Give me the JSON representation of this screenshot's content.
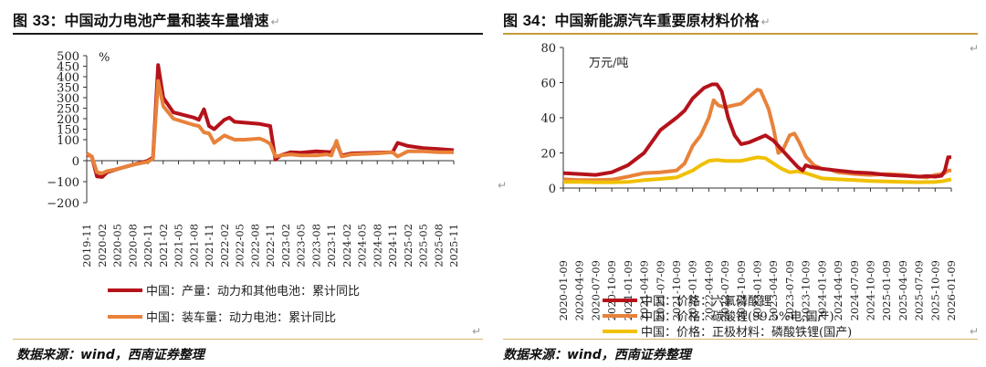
{
  "left": {
    "title_prefix": "图 ",
    "title_num": "33",
    "title_text": "：中国动力电池产量和装车量增速",
    "source": "数据来源：wind，西南证券整理",
    "chart_data": {
      "type": "line",
      "unit_label": "%",
      "ylim": [
        -200,
        500
      ],
      "yticks": [
        -200,
        -100,
        0,
        100,
        150,
        200,
        250,
        300,
        350,
        400,
        450,
        500
      ],
      "xticks": [
        "2019-11",
        "2020-02",
        "2020-05",
        "2020-08",
        "2020-11",
        "2021-02",
        "2021-05",
        "2021-08",
        "2021-11",
        "2022-02",
        "2022-05",
        "2022-08",
        "2022-11",
        "2023-02",
        "2023-05",
        "2023-08",
        "2023-11",
        "2024-02",
        "2024-05",
        "2024-08",
        "2024-11",
        "2025-02",
        "2025-05",
        "2025-08",
        "2025-11"
      ],
      "series": [
        {
          "name": "中国：产量：动力和其他电池：累计同比",
          "color": "#b5121b",
          "values": [
            [
              0,
              30
            ],
            [
              1,
              20
            ],
            [
              2,
              -75
            ],
            [
              3,
              -78
            ],
            [
              4,
              -55
            ],
            [
              6,
              -40
            ],
            [
              9,
              -20
            ],
            [
              12,
              0
            ],
            [
              13,
              15
            ],
            [
              14,
              455
            ],
            [
              15,
              300
            ],
            [
              17,
              230
            ],
            [
              21,
              205
            ],
            [
              22,
              195
            ],
            [
              23,
              245
            ],
            [
              24,
              165
            ],
            [
              25,
              150
            ],
            [
              27,
              195
            ],
            [
              28,
              205
            ],
            [
              29,
              185
            ],
            [
              34,
              175
            ],
            [
              35,
              170
            ],
            [
              36,
              165
            ],
            [
              37,
              5
            ],
            [
              38,
              25
            ],
            [
              40,
              40
            ],
            [
              42,
              38
            ],
            [
              45,
              45
            ],
            [
              48,
              40
            ],
            [
              49,
              85
            ],
            [
              50,
              25
            ],
            [
              52,
              35
            ],
            [
              57,
              38
            ],
            [
              60,
              40
            ],
            [
              61,
              85
            ],
            [
              63,
              70
            ],
            [
              66,
              60
            ],
            [
              69,
              55
            ],
            [
              72,
              50
            ]
          ]
        },
        {
          "name": "中国：装车量：动力电池：累计同比",
          "color": "#e8823a",
          "values": [
            [
              0,
              35
            ],
            [
              1,
              20
            ],
            [
              2,
              -55
            ],
            [
              3,
              -60
            ],
            [
              4,
              -50
            ],
            [
              6,
              -40
            ],
            [
              9,
              -20
            ],
            [
              12,
              -5
            ],
            [
              13,
              10
            ],
            [
              14,
              380
            ],
            [
              15,
              260
            ],
            [
              17,
              200
            ],
            [
              21,
              170
            ],
            [
              22,
              165
            ],
            [
              23,
              135
            ],
            [
              24,
              130
            ],
            [
              25,
              85
            ],
            [
              27,
              120
            ],
            [
              28,
              110
            ],
            [
              29,
              100
            ],
            [
              31,
              100
            ],
            [
              34,
              105
            ],
            [
              35,
              95
            ],
            [
              36,
              80
            ],
            [
              37,
              20
            ],
            [
              38,
              25
            ],
            [
              40,
              30
            ],
            [
              42,
              25
            ],
            [
              45,
              25
            ],
            [
              47,
              30
            ],
            [
              48,
              25
            ],
            [
              49,
              95
            ],
            [
              50,
              20
            ],
            [
              52,
              30
            ],
            [
              57,
              35
            ],
            [
              60,
              40
            ],
            [
              61,
              20
            ],
            [
              63,
              45
            ],
            [
              66,
              45
            ],
            [
              69,
              40
            ],
            [
              72,
              40
            ]
          ]
        }
      ]
    }
  },
  "right": {
    "title_prefix": "图 ",
    "title_num": "34",
    "title_text": "：中国新能源汽车重要原材料价格",
    "source": "数据来源：wind，西南证券整理",
    "chart_data": {
      "type": "line",
      "unit_label": "万元/吨",
      "ylim": [
        0,
        80
      ],
      "yticks": [
        0,
        20,
        40,
        60,
        80
      ],
      "xticks": [
        "2020-01-09",
        "2020-04-09",
        "2020-07-09",
        "2020-10-09",
        "2021-01-09",
        "2021-04-09",
        "2021-07-09",
        "2021-10-09",
        "2022-01-09",
        "2022-04-09",
        "2022-07-09",
        "2022-10-09",
        "2023-01-09",
        "2023-04-09",
        "2023-07-09",
        "2023-10-09",
        "2024-01-09",
        "2024-04-09",
        "2024-07-09",
        "2024-10-09",
        "2025-01-09",
        "2025-04-09",
        "2025-07-09",
        "2025-10-09",
        "2026-01-09"
      ],
      "series": [
        {
          "name": "中国：价格：六氟磷酸锂",
          "color": "#b5121b",
          "values": [
            [
              0,
              8.5
            ],
            [
              1,
              8
            ],
            [
              2,
              7.5
            ],
            [
              3,
              9
            ],
            [
              4,
              13
            ],
            [
              5,
              20
            ],
            [
              6,
              33
            ],
            [
              7,
              40
            ],
            [
              7.5,
              44
            ],
            [
              8,
              51
            ],
            [
              8.7,
              57
            ],
            [
              9.2,
              59
            ],
            [
              9.5,
              59
            ],
            [
              9.8,
              55
            ],
            [
              10.2,
              40
            ],
            [
              10.6,
              30
            ],
            [
              11,
              25
            ],
            [
              11.5,
              26
            ],
            [
              12,
              28
            ],
            [
              12.5,
              30
            ],
            [
              13,
              27
            ],
            [
              13.5,
              22
            ],
            [
              14,
              17
            ],
            [
              14.5,
              12
            ],
            [
              14.8,
              10
            ],
            [
              15,
              13
            ],
            [
              15.3,
              12
            ],
            [
              16,
              11
            ],
            [
              17,
              10
            ],
            [
              18,
              9
            ],
            [
              19,
              8.5
            ],
            [
              20,
              7.5
            ],
            [
              21,
              7
            ],
            [
              22,
              6.5
            ],
            [
              22.5,
              6.8
            ],
            [
              23,
              6.5
            ],
            [
              23.4,
              7
            ],
            [
              23.6,
              10
            ],
            [
              23.8,
              17.5
            ],
            [
              24,
              17.5
            ]
          ]
        },
        {
          "name": "中国：价格：碳酸锂(99.5%电,国产)",
          "color": "#e8823a",
          "values": [
            [
              0,
              5
            ],
            [
              1,
              4.5
            ],
            [
              2,
              4.5
            ],
            [
              3,
              4.8
            ],
            [
              4,
              6.5
            ],
            [
              5,
              8.5
            ],
            [
              6,
              9
            ],
            [
              7,
              10
            ],
            [
              7.5,
              14
            ],
            [
              8,
              24
            ],
            [
              8.5,
              30
            ],
            [
              9,
              40
            ],
            [
              9.3,
              50
            ],
            [
              9.6,
              47
            ],
            [
              10,
              46
            ],
            [
              11,
              48
            ],
            [
              11.5,
              52
            ],
            [
              12,
              56
            ],
            [
              12.2,
              55.5
            ],
            [
              12.7,
              45
            ],
            [
              13,
              34
            ],
            [
              13.3,
              20
            ],
            [
              13.6,
              22
            ],
            [
              14,
              30
            ],
            [
              14.3,
              31
            ],
            [
              14.6,
              26
            ],
            [
              15,
              18
            ],
            [
              15.5,
              13
            ],
            [
              16,
              11
            ],
            [
              16.5,
              10.5
            ],
            [
              17,
              9
            ],
            [
              17.5,
              8.5
            ],
            [
              18,
              8
            ],
            [
              19,
              7.5
            ],
            [
              20,
              8
            ],
            [
              21,
              7.5
            ],
            [
              22,
              6.5
            ],
            [
              22.5,
              6
            ],
            [
              23,
              7.5
            ],
            [
              23.5,
              8
            ],
            [
              23.8,
              10
            ],
            [
              24,
              10
            ]
          ]
        },
        {
          "name": "中国：价格：正极材料：磷酸铁锂(国产)",
          "color": "#f0c000",
          "values": [
            [
              0,
              3.5
            ],
            [
              1,
              3.5
            ],
            [
              2,
              3.3
            ],
            [
              3,
              3.3
            ],
            [
              4,
              3.5
            ],
            [
              5,
              4.5
            ],
            [
              6,
              5.2
            ],
            [
              7,
              6
            ],
            [
              7.5,
              8
            ],
            [
              8,
              10
            ],
            [
              8.5,
              13
            ],
            [
              9,
              15.5
            ],
            [
              9.5,
              16
            ],
            [
              10,
              15.5
            ],
            [
              11,
              15.5
            ],
            [
              12,
              17.5
            ],
            [
              12.5,
              17
            ],
            [
              13,
              14
            ],
            [
              13.5,
              11
            ],
            [
              14,
              9
            ],
            [
              14.5,
              9.5
            ],
            [
              15,
              8.5
            ],
            [
              15.5,
              7
            ],
            [
              16,
              5.5
            ],
            [
              17,
              5
            ],
            [
              18,
              4.5
            ],
            [
              19,
              4
            ],
            [
              20,
              3.8
            ],
            [
              21,
              3.5
            ],
            [
              22,
              3.3
            ],
            [
              23,
              3.5
            ],
            [
              23.5,
              4
            ],
            [
              24,
              5
            ]
          ]
        }
      ]
    }
  }
}
